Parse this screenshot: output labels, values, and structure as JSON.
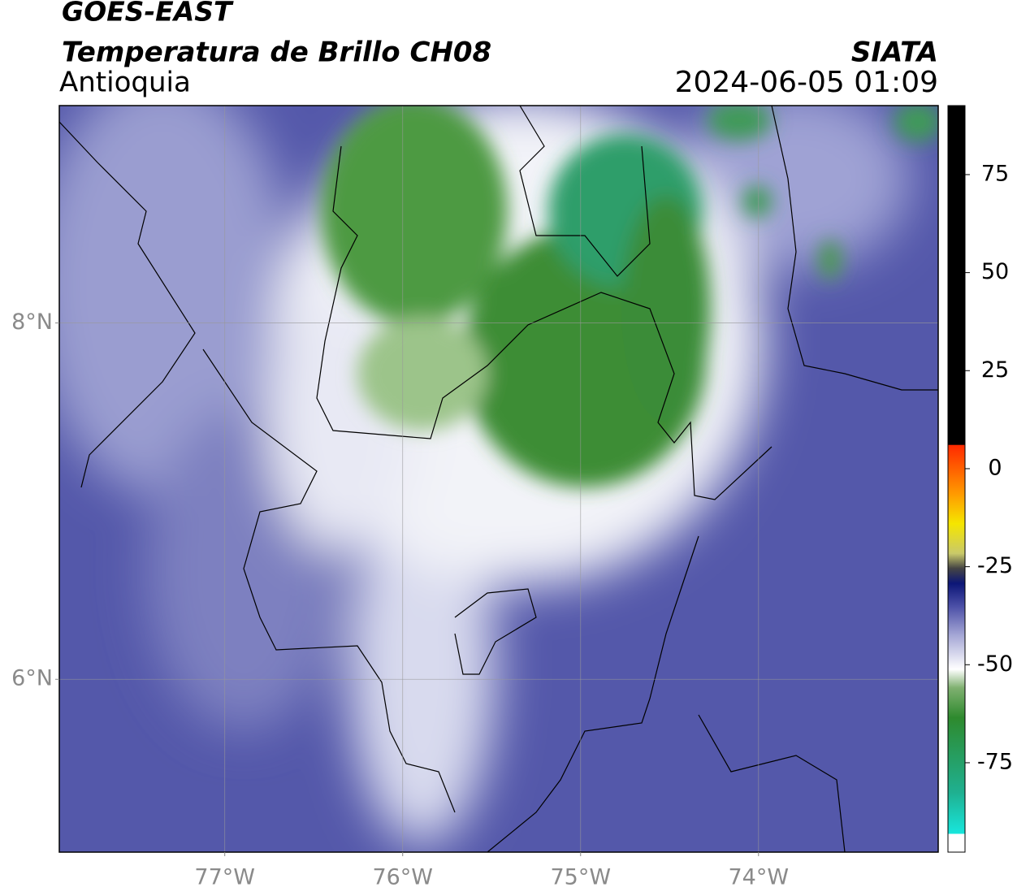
{
  "header": {
    "satellite": "GOES-EAST",
    "title": "Temperatura de Brillo CH08",
    "region": "Antioquia",
    "source": "SIATA",
    "datetime": "2024-06-05 01:09"
  },
  "map": {
    "xlim": [
      -77.93,
      -72.99
    ],
    "ylim": [
      5.03,
      9.22
    ],
    "xticks": [
      {
        "value": -77,
        "label": "77°W"
      },
      {
        "value": -76,
        "label": "76°W"
      },
      {
        "value": -75,
        "label": "75°W"
      },
      {
        "value": -74,
        "label": "74°W"
      }
    ],
    "yticks": [
      {
        "value": 8,
        "label": "8°N"
      },
      {
        "value": 6,
        "label": "6°N"
      }
    ],
    "grid": true
  },
  "colorbar": {
    "lim": [
      -97.8,
      92.6
    ],
    "ticks": [
      75,
      50,
      25,
      0,
      -25,
      -50,
      -75
    ]
  }
}
